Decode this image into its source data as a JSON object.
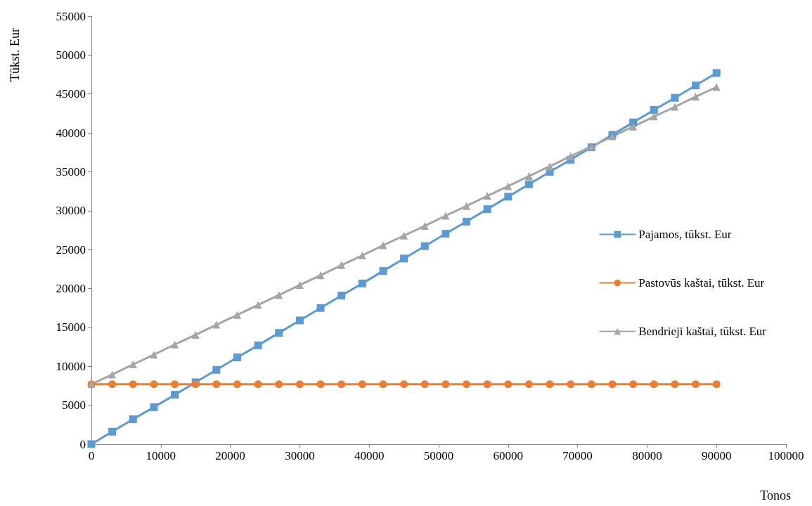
{
  "chart_data": {
    "type": "line",
    "xlabel": "Tonos",
    "ylabel": "Tūkst. Eur",
    "x": [
      0,
      3000,
      6000,
      9000,
      12000,
      15000,
      18000,
      21000,
      24000,
      27000,
      30000,
      33000,
      36000,
      39000,
      42000,
      45000,
      48000,
      51000,
      54000,
      57000,
      60000,
      63000,
      66000,
      69000,
      72000,
      75000,
      78000,
      81000,
      84000,
      87000,
      90000
    ],
    "series": [
      {
        "name": "Pajamos, tūkst. Eur",
        "color": "#5b9bd5",
        "marker": "square",
        "values": [
          0,
          1600,
          3200,
          4750,
          6350,
          7950,
          9550,
          11150,
          12700,
          14300,
          15900,
          17500,
          19100,
          20650,
          22250,
          23850,
          25450,
          27050,
          28600,
          30200,
          31800,
          33400,
          35000,
          36550,
          38150,
          39750,
          41350,
          42950,
          44500,
          46100,
          47700
        ]
      },
      {
        "name": "Pastovūs kaštai, tūkst. Eur",
        "color": "#ed7d31",
        "marker": "circle",
        "values": [
          7700,
          7700,
          7700,
          7700,
          7700,
          7700,
          7700,
          7700,
          7700,
          7700,
          7700,
          7700,
          7700,
          7700,
          7700,
          7700,
          7700,
          7700,
          7700,
          7700,
          7700,
          7700,
          7700,
          7700,
          7700,
          7700,
          7700,
          7700,
          7700,
          7700,
          7700
        ]
      },
      {
        "name": "Bendrieji kaštai, tūkst. Eur",
        "color": "#a5a5a5",
        "marker": "triangle",
        "values": [
          7700,
          8950,
          10250,
          11500,
          12800,
          14050,
          15350,
          16600,
          17900,
          19150,
          20450,
          21700,
          23000,
          24250,
          25550,
          26800,
          28050,
          29350,
          30600,
          31900,
          33150,
          34450,
          35700,
          37000,
          38250,
          39550,
          40800,
          42100,
          43350,
          44650,
          45900
        ]
      }
    ],
    "xlim": [
      0,
      100000
    ],
    "xticks": [
      0,
      10000,
      20000,
      30000,
      40000,
      50000,
      60000,
      70000,
      80000,
      90000,
      100000
    ],
    "ylim": [
      0,
      55000
    ],
    "yticks": [
      0,
      5000,
      10000,
      15000,
      20000,
      25000,
      30000,
      35000,
      40000,
      45000,
      50000,
      55000
    ],
    "grid": false,
    "legend": "right",
    "line_style": "solid"
  }
}
